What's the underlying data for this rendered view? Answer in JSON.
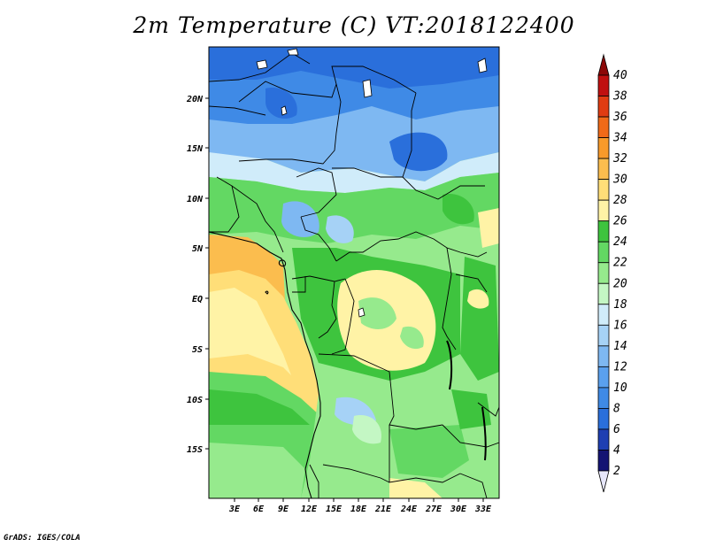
{
  "title": "2m Temperature (C) VT:2018122400",
  "credit": "GrADS: IGES/COLA",
  "map": {
    "lon_ticks": [
      "3E",
      "6E",
      "9E",
      "12E",
      "15E",
      "18E",
      "21E",
      "24E",
      "27E",
      "30E",
      "33E"
    ],
    "lat_ticks": [
      "20N",
      "15N",
      "10N",
      "5N",
      "EQ",
      "5S",
      "10S",
      "15S"
    ]
  },
  "colorbar": {
    "levels": [
      "2",
      "4",
      "6",
      "8",
      "10",
      "12",
      "14",
      "16",
      "18",
      "20",
      "22",
      "24",
      "26",
      "28",
      "30",
      "32",
      "34",
      "36",
      "38",
      "40"
    ],
    "colors": [
      "#e6e6fa",
      "#141473",
      "#1f3fb2",
      "#2a6fdb",
      "#3f8ae6",
      "#5aa0ee",
      "#7eb8f2",
      "#a6d2f6",
      "#d0ecfa",
      "#c4f7c4",
      "#96ea8d",
      "#63d863",
      "#3ec43e",
      "#fff3a6",
      "#ffde78",
      "#fbbd4e",
      "#f89a2a",
      "#f06a18",
      "#e03c12",
      "#c01010",
      "#8c0808"
    ]
  },
  "palette": {
    "blue_dark": "#2a6fdb",
    "blue_mid": "#3f8ae6",
    "blue_light": "#7eb8f2",
    "cyan_light": "#d0ecfa",
    "green_pale": "#c4f7c4",
    "green_light": "#96ea8d",
    "green_mid": "#63d863",
    "green_dark": "#3ec43e",
    "yellow": "#fff3a6",
    "orange_light": "#ffde78",
    "orange": "#fbbd4e"
  }
}
